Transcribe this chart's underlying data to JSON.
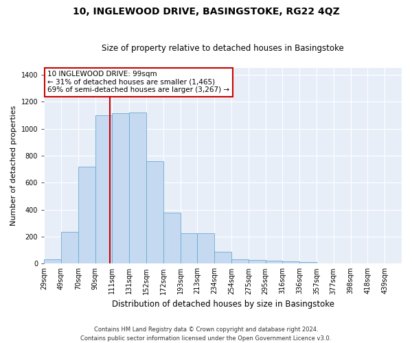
{
  "title": "10, INGLEWOOD DRIVE, BASINGSTOKE, RG22 4QZ",
  "subtitle": "Size of property relative to detached houses in Basingstoke",
  "xlabel": "Distribution of detached houses by size in Basingstoke",
  "ylabel": "Number of detached properties",
  "footer_line1": "Contains HM Land Registry data © Crown copyright and database right 2024.",
  "footer_line2": "Contains public sector information licensed under the Open Government Licence v3.0.",
  "bar_labels": [
    "29sqm",
    "49sqm",
    "70sqm",
    "90sqm",
    "111sqm",
    "131sqm",
    "152sqm",
    "172sqm",
    "193sqm",
    "213sqm",
    "234sqm",
    "254sqm",
    "275sqm",
    "295sqm",
    "316sqm",
    "336sqm",
    "357sqm",
    "377sqm",
    "398sqm",
    "418sqm",
    "439sqm"
  ],
  "bar_values": [
    30,
    235,
    720,
    1100,
    1115,
    1120,
    760,
    380,
    225,
    225,
    90,
    30,
    25,
    20,
    15,
    10,
    0,
    0,
    0,
    0,
    0
  ],
  "bar_color": "#c5d9f0",
  "bar_edge_color": "#6aaad4",
  "background_color": "#e8eef8",
  "grid_color": "#ffffff",
  "annotation_text": "10 INGLEWOOD DRIVE: 99sqm\n← 31% of detached houses are smaller (1,465)\n69% of semi-detached houses are larger (3,267) →",
  "annotation_box_color": "#ffffff",
  "annotation_box_edge": "#cc0000",
  "vline_color": "#cc0000",
  "vline_x_label_idx": 3,
  "bin_width": 21,
  "bin_starts": [
    18,
    39,
    60,
    81,
    102,
    123,
    144,
    165,
    186,
    207,
    228,
    249,
    270,
    291,
    312,
    333,
    354,
    375,
    396,
    417,
    438
  ],
  "ylim": [
    0,
    1450
  ],
  "yticks": [
    0,
    200,
    400,
    600,
    800,
    1000,
    1200,
    1400
  ],
  "fig_width": 6.0,
  "fig_height": 5.0,
  "title_fontsize": 10,
  "subtitle_fontsize": 8.5,
  "ylabel_fontsize": 8,
  "xlabel_fontsize": 8.5,
  "tick_fontsize": 7,
  "annot_fontsize": 7.5,
  "footer_fontsize": 6
}
